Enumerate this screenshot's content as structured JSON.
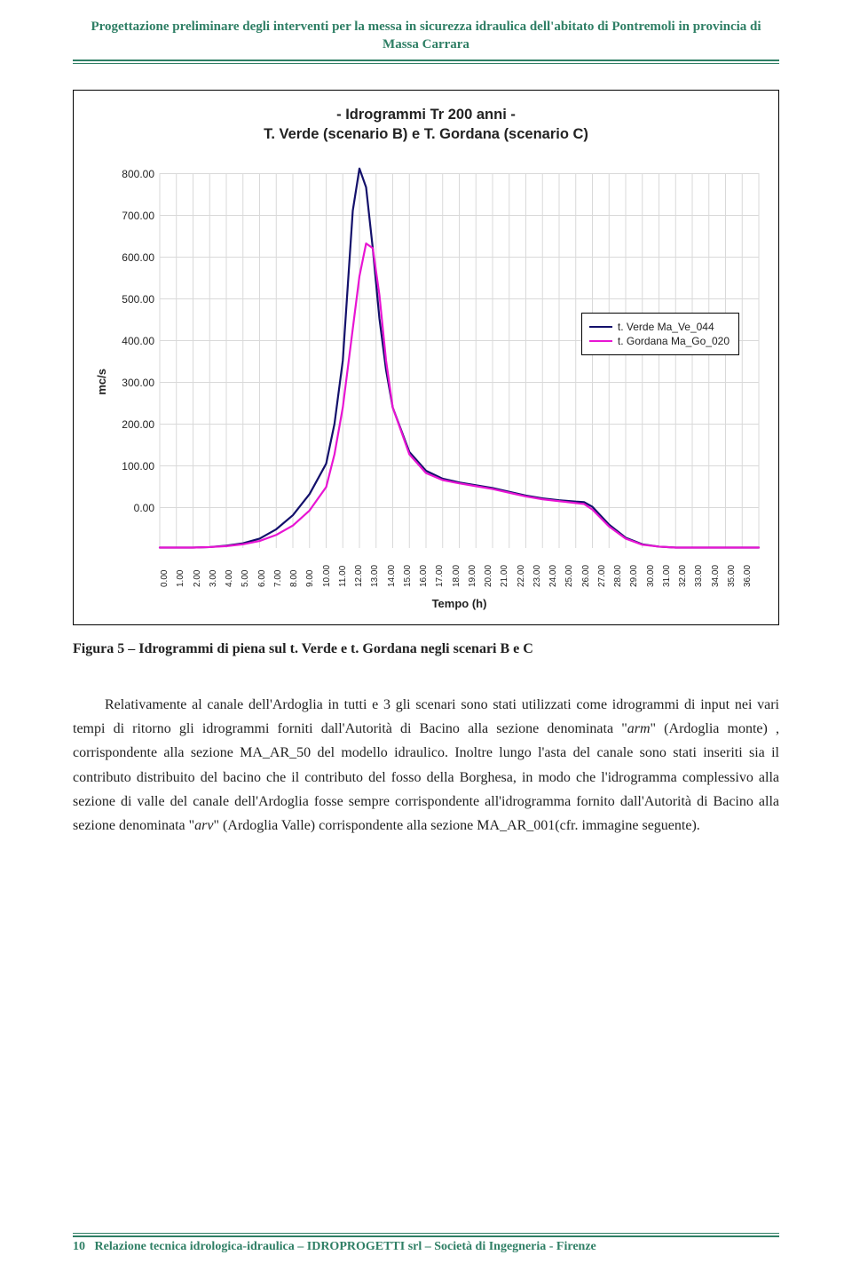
{
  "header": {
    "title": "Progettazione preliminare degli interventi per la messa in sicurezza idraulica dell'abitato di Pontremoli in provincia di Massa Carrara"
  },
  "chart": {
    "type": "line",
    "title_line1": "- Idrogrammi Tr 200 anni -",
    "title_line2": "T. Verde (scenario B) e T. Gordana (scenario C)",
    "ylabel": "mc/s",
    "xlabel": "Tempo (h)",
    "ylim": [
      0,
      800
    ],
    "xlim": [
      0,
      36
    ],
    "ytick_step": 100,
    "xtick_step": 1,
    "yticks": [
      "800.00",
      "700.00",
      "600.00",
      "500.00",
      "400.00",
      "300.00",
      "200.00",
      "100.00",
      "0.00"
    ],
    "xticks": [
      "0.00",
      "1.00",
      "2.00",
      "3.00",
      "4.00",
      "5.00",
      "6.00",
      "7.00",
      "8.00",
      "9.00",
      "10.00",
      "11.00",
      "12.00",
      "13.00",
      "14.00",
      "15.00",
      "16.00",
      "17.00",
      "18.00",
      "19.00",
      "20.00",
      "21.00",
      "22.00",
      "23.00",
      "24.00",
      "25.00",
      "26.00",
      "27.00",
      "28.00",
      "29.00",
      "30.00",
      "31.00",
      "32.00",
      "33.00",
      "34.00",
      "35.00",
      "36.00"
    ],
    "background_color": "#ffffff",
    "grid_color": "#d9d9d9",
    "axis_color": "#000000",
    "label_fontsize": 13,
    "tick_fontsize": 11,
    "title_fontsize": 16,
    "line_width": 2.2,
    "series": [
      {
        "name": "t. Verde Ma_Ve_044",
        "color": "#13106b",
        "data": [
          [
            0,
            1
          ],
          [
            1,
            1
          ],
          [
            2,
            1
          ],
          [
            3,
            2
          ],
          [
            4,
            5
          ],
          [
            5,
            10
          ],
          [
            6,
            20
          ],
          [
            7,
            40
          ],
          [
            8,
            70
          ],
          [
            9,
            115
          ],
          [
            10,
            180
          ],
          [
            10.5,
            265
          ],
          [
            11,
            400
          ],
          [
            11.3,
            560
          ],
          [
            11.6,
            720
          ],
          [
            12,
            810
          ],
          [
            12.4,
            770
          ],
          [
            12.8,
            640
          ],
          [
            13.2,
            490
          ],
          [
            13.6,
            380
          ],
          [
            14,
            300
          ],
          [
            15,
            205
          ],
          [
            16,
            165
          ],
          [
            17,
            148
          ],
          [
            18,
            140
          ],
          [
            19,
            134
          ],
          [
            20,
            128
          ],
          [
            21,
            120
          ],
          [
            22,
            112
          ],
          [
            23,
            106
          ],
          [
            24,
            102
          ],
          [
            25,
            99
          ],
          [
            25.5,
            98
          ],
          [
            26,
            88
          ],
          [
            27,
            50
          ],
          [
            28,
            22
          ],
          [
            29,
            8
          ],
          [
            30,
            3
          ],
          [
            31,
            1
          ],
          [
            32,
            1
          ],
          [
            33,
            1
          ],
          [
            34,
            1
          ],
          [
            35,
            1
          ],
          [
            36,
            1
          ]
        ]
      },
      {
        "name": "t. Gordana Ma_Go_020",
        "color": "#e815d3",
        "data": [
          [
            0,
            1
          ],
          [
            1,
            1
          ],
          [
            2,
            1
          ],
          [
            3,
            2
          ],
          [
            4,
            4
          ],
          [
            5,
            8
          ],
          [
            6,
            15
          ],
          [
            7,
            28
          ],
          [
            8,
            48
          ],
          [
            9,
            80
          ],
          [
            10,
            130
          ],
          [
            10.5,
            200
          ],
          [
            11,
            300
          ],
          [
            11.5,
            440
          ],
          [
            12,
            580
          ],
          [
            12.4,
            650
          ],
          [
            12.8,
            640
          ],
          [
            13.2,
            540
          ],
          [
            13.6,
            400
          ],
          [
            14,
            300
          ],
          [
            15,
            200
          ],
          [
            16,
            160
          ],
          [
            17,
            145
          ],
          [
            18,
            138
          ],
          [
            19,
            132
          ],
          [
            20,
            126
          ],
          [
            21,
            118
          ],
          [
            22,
            110
          ],
          [
            23,
            104
          ],
          [
            24,
            100
          ],
          [
            25,
            96
          ],
          [
            25.5,
            94
          ],
          [
            26,
            82
          ],
          [
            27,
            46
          ],
          [
            28,
            20
          ],
          [
            29,
            7
          ],
          [
            30,
            3
          ],
          [
            31,
            1
          ],
          [
            32,
            1
          ],
          [
            33,
            1
          ],
          [
            34,
            1
          ],
          [
            35,
            1
          ],
          [
            36,
            1
          ]
        ]
      }
    ],
    "legend_items": [
      {
        "label": "t. Verde Ma_Ve_044",
        "color": "#13106b"
      },
      {
        "label": "t. Gordana Ma_Go_020",
        "color": "#e815d3"
      }
    ]
  },
  "figure_caption": "Figura 5 – Idrogrammi di piena sul t. Verde e t. Gordana negli scenari B e C",
  "body": {
    "text": "Relativamente al canale dell'Ardoglia in tutti e 3 gli scenari sono stati utilizzati come idrogrammi di input nei vari tempi di ritorno gli idrogrammi forniti dall'Autorità di Bacino alla sezione denominata \"arm\" (Ardoglia monte) , corrispondente alla sezione MA_AR_50 del modello idraulico. Inoltre lungo l'asta del canale sono stati inseriti sia il contributo distribuito del bacino che il contributo del fosso della Borghesa, in modo che l'idrogramma complessivo alla sezione di valle del canale dell'Ardoglia fosse sempre corrispondente all'idrogramma fornito dall'Autorità di Bacino alla sezione denominata \"arv\" (Ardoglia Valle) corrispondente alla sezione MA_AR_001(cfr. immagine seguente)."
  },
  "footer": {
    "page_number": "10",
    "text": "Relazione tecnica idrologica-idraulica – IDROPROGETTI srl – Società di Ingegneria - Firenze"
  },
  "colors": {
    "brand_green": "#2f7f65"
  }
}
